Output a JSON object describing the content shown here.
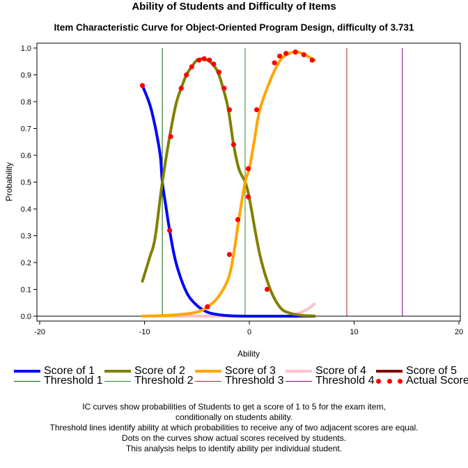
{
  "chart_data": {
    "type": "line",
    "title": "Ability of Students and Difficulty of Items",
    "subtitle": "Item Characteristic Curve for Object-Oriented Program Design, difficulty of 3.731",
    "xlabel": "Ability",
    "ylabel": "Probability",
    "xlim": [
      -20,
      20
    ],
    "ylim": [
      0.0,
      1.0
    ],
    "x_ticks": [
      "-20",
      "-10",
      "0",
      "10",
      "20"
    ],
    "x_tick_values": [
      -20,
      -10,
      0,
      10,
      20
    ],
    "y_ticks": [
      "0.0",
      "0.1",
      "0.2",
      "0.3",
      "0.4",
      "0.5",
      "0.6",
      "0.7",
      "0.8",
      "0.9",
      "1.0"
    ],
    "y_tick_values": [
      0,
      0.1,
      0.2,
      0.3,
      0.4,
      0.5,
      0.6,
      0.7,
      0.8,
      0.9,
      1.0
    ],
    "grid": false,
    "legend_position": "bottom",
    "ability_range": [
      -10.2,
      6.2
    ],
    "series": [
      {
        "name": "Score of 1",
        "color": "#0000ff",
        "points": [
          [
            -10.2,
            0.86
          ],
          [
            -9.5,
            0.79
          ],
          [
            -9.0,
            0.71
          ],
          [
            -8.5,
            0.6
          ],
          [
            -8.3,
            0.5
          ],
          [
            -8.0,
            0.42
          ],
          [
            -7.6,
            0.32
          ],
          [
            -7.0,
            0.2
          ],
          [
            -6.0,
            0.09
          ],
          [
            -5.0,
            0.04
          ],
          [
            -4.0,
            0.015
          ],
          [
            -3.0,
            0.006
          ],
          [
            -2.0,
            0.002
          ],
          [
            0.0,
            0.0
          ],
          [
            6.2,
            0.0
          ]
        ]
      },
      {
        "name": "Score of 2",
        "color": "#808000",
        "points": [
          [
            -10.2,
            0.13
          ],
          [
            -9.5,
            0.22
          ],
          [
            -9.0,
            0.29
          ],
          [
            -8.3,
            0.5
          ],
          [
            -7.6,
            0.67
          ],
          [
            -7.0,
            0.79
          ],
          [
            -6.5,
            0.85
          ],
          [
            -6.0,
            0.9
          ],
          [
            -5.5,
            0.93
          ],
          [
            -5.0,
            0.955
          ],
          [
            -4.5,
            0.96
          ],
          [
            -4.0,
            0.955
          ],
          [
            -3.5,
            0.94
          ],
          [
            -3.0,
            0.91
          ],
          [
            -2.5,
            0.85
          ],
          [
            -2.0,
            0.77
          ],
          [
            -1.5,
            0.64
          ],
          [
            -1.0,
            0.55
          ],
          [
            -0.4,
            0.5
          ],
          [
            0.0,
            0.44
          ],
          [
            1.0,
            0.23
          ],
          [
            2.0,
            0.1
          ],
          [
            3.0,
            0.03
          ],
          [
            4.0,
            0.01
          ],
          [
            5.0,
            0.003
          ],
          [
            6.2,
            0.001
          ]
        ]
      },
      {
        "name": "Score of 3",
        "color": "#ffa500",
        "points": [
          [
            -10.2,
            0.0
          ],
          [
            -7.0,
            0.005
          ],
          [
            -5.0,
            0.015
          ],
          [
            -4.0,
            0.035
          ],
          [
            -3.0,
            0.07
          ],
          [
            -2.0,
            0.14
          ],
          [
            -1.5,
            0.23
          ],
          [
            -1.0,
            0.36
          ],
          [
            -0.4,
            0.5
          ],
          [
            0.0,
            0.55
          ],
          [
            0.5,
            0.66
          ],
          [
            1.0,
            0.77
          ],
          [
            2.0,
            0.88
          ],
          [
            2.8,
            0.945
          ],
          [
            3.5,
            0.975
          ],
          [
            4.5,
            0.985
          ],
          [
            5.3,
            0.975
          ],
          [
            6.2,
            0.955
          ]
        ]
      },
      {
        "name": "Score of 4",
        "color": "#ffc0cb",
        "points": [
          [
            -10.2,
            0.0
          ],
          [
            3.0,
            0.0
          ],
          [
            4.0,
            0.005
          ],
          [
            5.0,
            0.015
          ],
          [
            5.7,
            0.03
          ],
          [
            6.2,
            0.045
          ]
        ]
      },
      {
        "name": "Score of 5",
        "color": "#800000",
        "points": [
          [
            -10.2,
            0.0
          ],
          [
            6.2,
            0.0
          ]
        ]
      }
    ],
    "thresholds": [
      {
        "name": "Threshold 1",
        "x": -8.3,
        "color": "#006400"
      },
      {
        "name": "Threshold 2",
        "x": -0.4,
        "color": "#228b22"
      },
      {
        "name": "Threshold 3",
        "x": 9.3,
        "color": "#b22222"
      },
      {
        "name": "Threshold 4",
        "x": 14.6,
        "color": "#800080"
      }
    ],
    "actual_scores": {
      "name": "Actual Scores",
      "color": "#ff0000",
      "points": [
        [
          -10.2,
          0.86
        ],
        [
          -7.6,
          0.32
        ],
        [
          -7.5,
          0.67
        ],
        [
          -6.5,
          0.85
        ],
        [
          -6.0,
          0.9
        ],
        [
          -5.5,
          0.93
        ],
        [
          -4.8,
          0.955
        ],
        [
          -4.3,
          0.96
        ],
        [
          -3.8,
          0.955
        ],
        [
          -3.4,
          0.94
        ],
        [
          -2.9,
          0.91
        ],
        [
          -2.4,
          0.85
        ],
        [
          -1.9,
          0.77
        ],
        [
          -1.5,
          0.64
        ],
        [
          -1.1,
          0.36
        ],
        [
          -1.9,
          0.23
        ],
        [
          -0.1,
          0.55
        ],
        [
          -0.1,
          0.445
        ],
        [
          0.7,
          0.77
        ],
        [
          1.7,
          0.1
        ],
        [
          2.4,
          0.945
        ],
        [
          2.9,
          0.97
        ],
        [
          3.5,
          0.98
        ],
        [
          4.4,
          0.985
        ],
        [
          5.2,
          0.975
        ],
        [
          6.0,
          0.955
        ],
        [
          -4.0,
          0.035
        ]
      ]
    }
  },
  "legend": {
    "items": [
      {
        "label": "Score of 1",
        "color": "#0000ff",
        "kind": "thick-line"
      },
      {
        "label": "Score of 2",
        "color": "#808000",
        "kind": "thick-line"
      },
      {
        "label": "Score of 3",
        "color": "#ffa500",
        "kind": "thick-line"
      },
      {
        "label": "Score of 4",
        "color": "#ffc0cb",
        "kind": "thick-line"
      },
      {
        "label": "Score of 5",
        "color": "#800000",
        "kind": "thick-line"
      },
      {
        "label": "Threshold 1",
        "color": "#006400",
        "kind": "thin-line"
      },
      {
        "label": "Threshold 2",
        "color": "#228b22",
        "kind": "thin-line"
      },
      {
        "label": "Threshold 3",
        "color": "#b22222",
        "kind": "thin-line"
      },
      {
        "label": "Threshold 4",
        "color": "#800080",
        "kind": "thin-line"
      },
      {
        "label": "Actual Scores",
        "color": "#ff0000",
        "kind": "dots"
      }
    ]
  },
  "footnote": {
    "lines": [
      "IC curves show probabilities of Students to get a score of 1 to 5 for the exam item,",
      "conditionally on students ability.",
      "Threshold lines identify ability at which probabilities to receive any of two adjacent scores are equal.",
      "Dots on the curves show actual scores received by students.",
      "This analysis helps to identify ability per individual student."
    ]
  }
}
